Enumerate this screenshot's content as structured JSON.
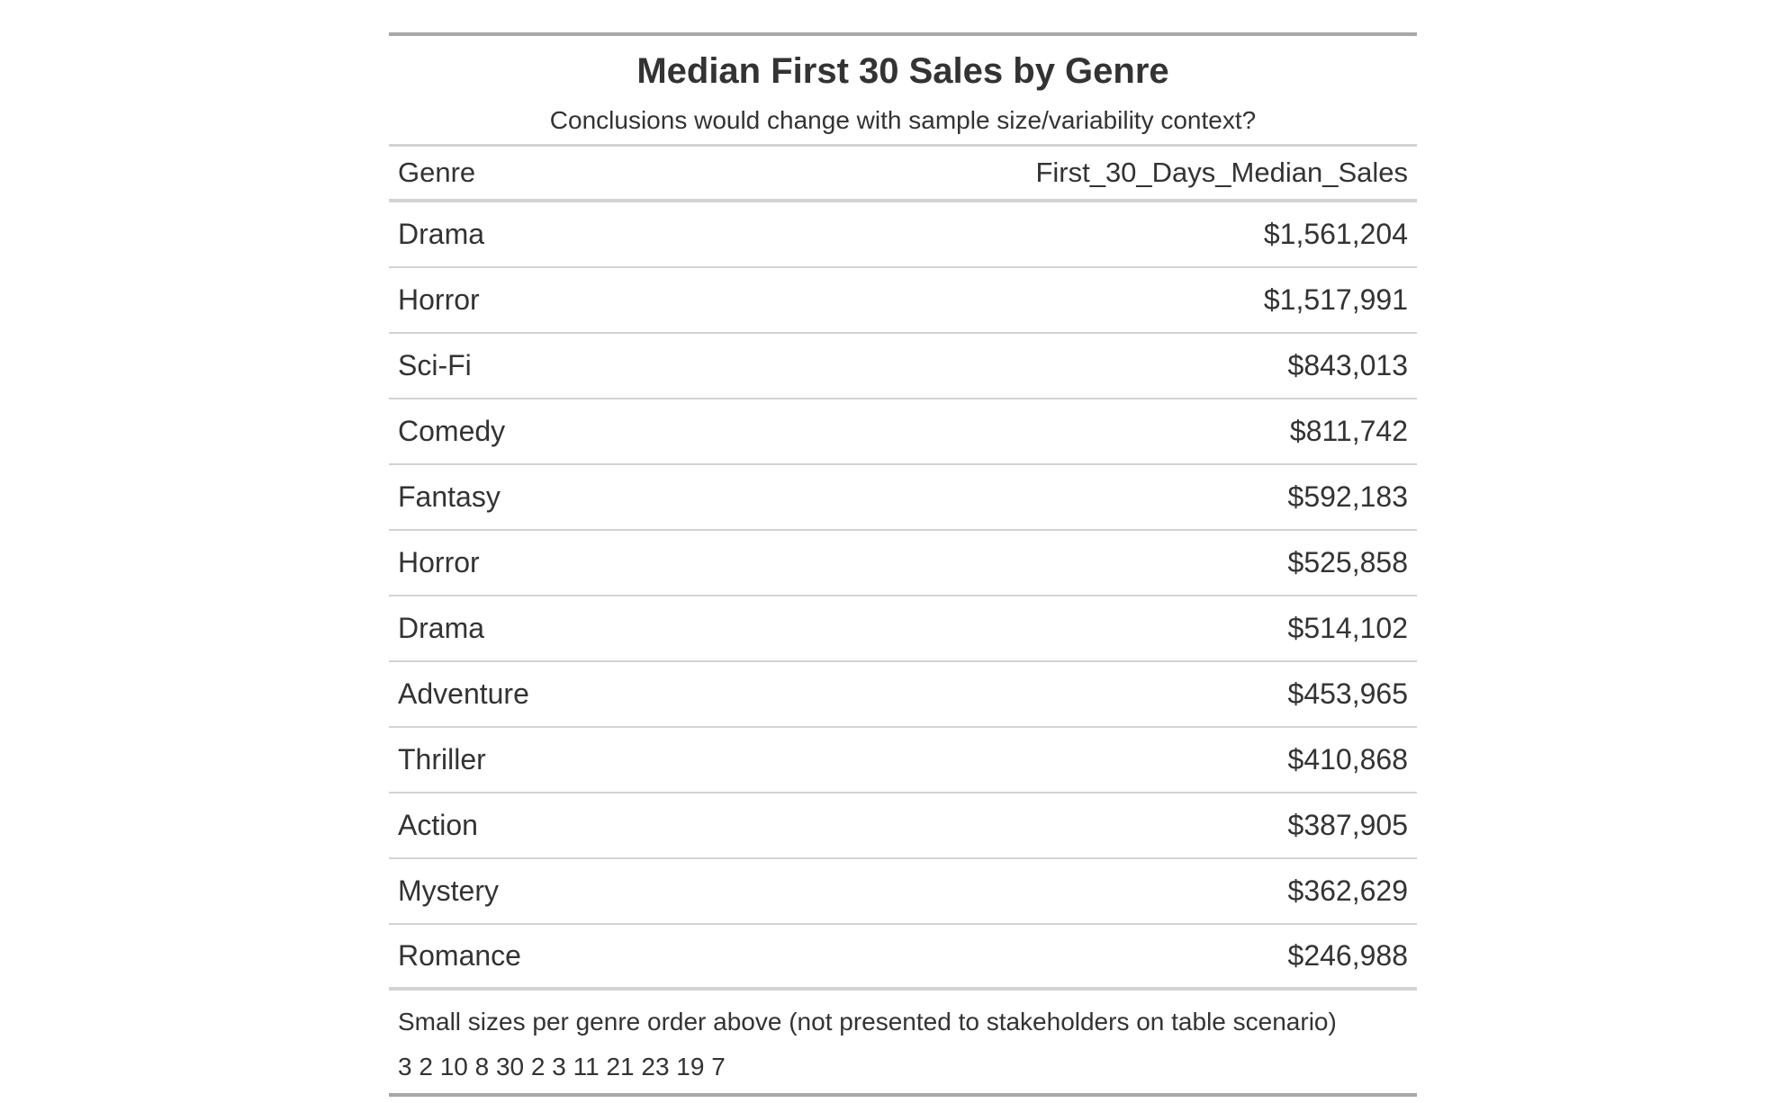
{
  "chart_data": {
    "type": "table",
    "title": "Median First 30 Sales by Genre",
    "subtitle": "Conclusions would change with sample size/variability context?",
    "columns": [
      "Genre",
      "First_30_Days_Median_Sales"
    ],
    "rows": [
      {
        "genre": "Drama",
        "sales": "$1,561,204"
      },
      {
        "genre": "Horror",
        "sales": "$1,517,991"
      },
      {
        "genre": "Sci-Fi",
        "sales": "$843,013"
      },
      {
        "genre": "Comedy",
        "sales": "$811,742"
      },
      {
        "genre": "Fantasy",
        "sales": "$592,183"
      },
      {
        "genre": "Horror",
        "sales": "$525,858"
      },
      {
        "genre": "Drama",
        "sales": "$514,102"
      },
      {
        "genre": "Adventure",
        "sales": "$453,965"
      },
      {
        "genre": "Thriller",
        "sales": "$410,868"
      },
      {
        "genre": "Action",
        "sales": "$387,905"
      },
      {
        "genre": "Mystery",
        "sales": "$362,629"
      },
      {
        "genre": "Romance",
        "sales": "$246,988"
      }
    ],
    "footnotes": [
      "Small sizes per genre order above (not presented to stakeholders on table scenario)",
      "3 2 10 8 30 2 3 11 21 23 19 7"
    ]
  }
}
